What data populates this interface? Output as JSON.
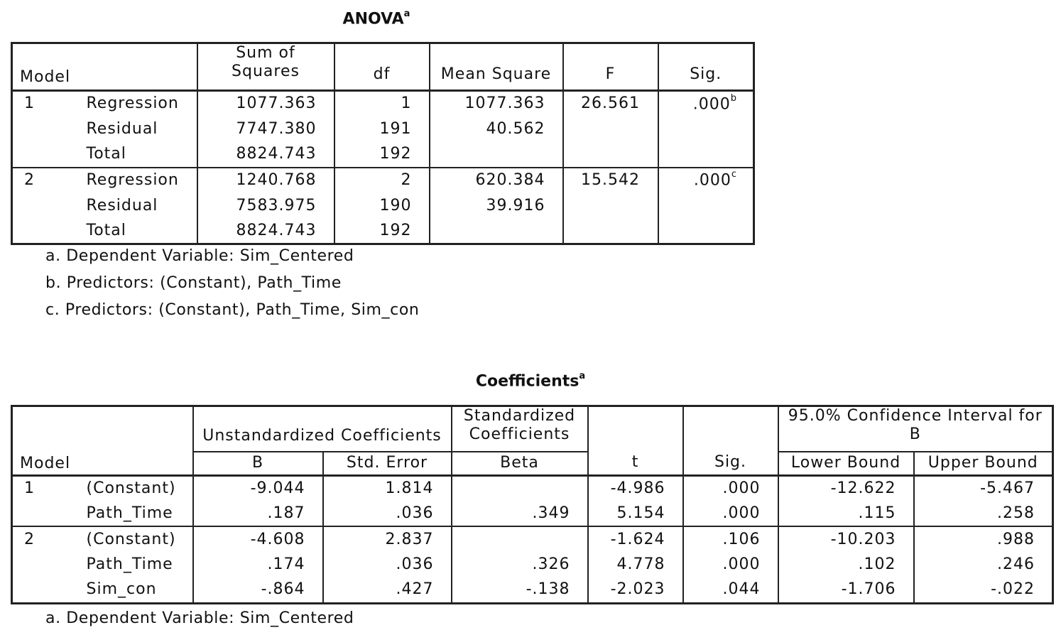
{
  "anova": {
    "title": "ANOVA",
    "title_sup": "a",
    "headers": {
      "model": "Model",
      "sum_of_squares_line1": "Sum of",
      "sum_of_squares_line2": "Squares",
      "df": "df",
      "mean_square": "Mean Square",
      "f": "F",
      "sig": "Sig."
    },
    "models": [
      {
        "model": "1",
        "rows": [
          {
            "label": "Regression",
            "ss": "1077.363",
            "df": "1",
            "ms": "1077.363",
            "f": "26.561",
            "sig": ".000",
            "sig_sup": "b"
          },
          {
            "label": "Residual",
            "ss": "7747.380",
            "df": "191",
            "ms": "40.562",
            "f": "",
            "sig": "",
            "sig_sup": ""
          },
          {
            "label": "Total",
            "ss": "8824.743",
            "df": "192",
            "ms": "",
            "f": "",
            "sig": "",
            "sig_sup": ""
          }
        ]
      },
      {
        "model": "2",
        "rows": [
          {
            "label": "Regression",
            "ss": "1240.768",
            "df": "2",
            "ms": "620.384",
            "f": "15.542",
            "sig": ".000",
            "sig_sup": "c"
          },
          {
            "label": "Residual",
            "ss": "7583.975",
            "df": "190",
            "ms": "39.916",
            "f": "",
            "sig": "",
            "sig_sup": ""
          },
          {
            "label": "Total",
            "ss": "8824.743",
            "df": "192",
            "ms": "",
            "f": "",
            "sig": "",
            "sig_sup": ""
          }
        ]
      }
    ],
    "footnotes": [
      "a. Dependent Variable: Sim_Centered",
      "b. Predictors: (Constant), Path_Time",
      "c. Predictors: (Constant), Path_Time, Sim_con"
    ]
  },
  "coefficients": {
    "title": "Coefficients",
    "title_sup": "a",
    "headers": {
      "model": "Model",
      "unstandardized": "Unstandardized Coefficients",
      "standardized_line1": "Standardized",
      "standardized_line2": "Coefficients",
      "ci_line1": "95.0% Confidence Interval for",
      "ci_line2": "B",
      "b": "B",
      "std_error": "Std. Error",
      "beta": "Beta",
      "t": "t",
      "sig": "Sig.",
      "lower_bound": "Lower Bound",
      "upper_bound": "Upper Bound"
    },
    "models": [
      {
        "model": "1",
        "rows": [
          {
            "label": "(Constant)",
            "b": "-9.044",
            "se": "1.814",
            "beta": "",
            "t": "-4.986",
            "sig": ".000",
            "lb": "-12.622",
            "ub": "-5.467"
          },
          {
            "label": "Path_Time",
            "b": ".187",
            "se": ".036",
            "beta": ".349",
            "t": "5.154",
            "sig": ".000",
            "lb": ".115",
            "ub": ".258"
          }
        ]
      },
      {
        "model": "2",
        "rows": [
          {
            "label": "(Constant)",
            "b": "-4.608",
            "se": "2.837",
            "beta": "",
            "t": "-1.624",
            "sig": ".106",
            "lb": "-10.203",
            "ub": ".988"
          },
          {
            "label": "Path_Time",
            "b": ".174",
            "se": ".036",
            "beta": ".326",
            "t": "4.778",
            "sig": ".000",
            "lb": ".102",
            "ub": ".246"
          },
          {
            "label": "Sim_con",
            "b": "-.864",
            "se": ".427",
            "beta": "-.138",
            "t": "-2.023",
            "sig": ".044",
            "lb": "-1.706",
            "ub": "-.022"
          }
        ]
      }
    ],
    "footnotes": [
      "a. Dependent Variable: Sim_Centered"
    ]
  }
}
